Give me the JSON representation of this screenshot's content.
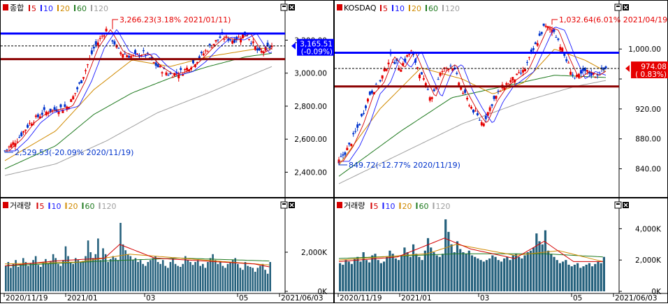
{
  "colors": {
    "up": "#e60000",
    "down": "#0033cc",
    "ma5": "#d40000",
    "ma10": "#1a1aff",
    "ma20": "#d08a00",
    "ma60": "#1f7a1f",
    "ma120": "#a0a0a0",
    "volume": "#24607c",
    "resistance_line": "#0000ff",
    "support_line": "#8b0000"
  },
  "legend_ma": [
    "5",
    "10",
    "20",
    "60",
    "120"
  ],
  "chart_data": [
    {
      "type": "candlestick",
      "id": "kospi-price",
      "title": "종합",
      "x_tick_labels": [
        "2020/11/19",
        "2021/01",
        "03",
        "05",
        "2021/06/03"
      ],
      "y_ticks": [
        2400,
        2600,
        2800,
        3000,
        3200
      ],
      "y_tick_labels": [
        "2,400.00",
        "2,600.00",
        "2,800.00",
        "3,000.00",
        "3,200.00"
      ],
      "ylim": [
        2330,
        3350
      ],
      "high_annotation": "3,266.23(3.18% 2021/01/11)",
      "low_annotation": "2,529.53(-20.09% 2020/11/19)",
      "current_value": "3,165.51",
      "current_change": "(-0.09%)",
      "resistance_level": 3240,
      "support_level": 3085,
      "ref_dashed_level": 3165,
      "low_value": 2529.53,
      "high_value": 3266.23,
      "path": [
        [
          0,
          2529
        ],
        [
          10,
          2600
        ],
        [
          20,
          2700
        ],
        [
          30,
          2760
        ],
        [
          40,
          2780
        ],
        [
          50,
          2800
        ],
        [
          60,
          2950
        ],
        [
          70,
          3150
        ],
        [
          80,
          3266
        ],
        [
          90,
          3130
        ],
        [
          100,
          3100
        ],
        [
          110,
          3120
        ],
        [
          120,
          3040
        ],
        [
          130,
          2990
        ],
        [
          140,
          3010
        ],
        [
          150,
          3070
        ],
        [
          160,
          3150
        ],
        [
          170,
          3220
        ],
        [
          180,
          3200
        ],
        [
          190,
          3240
        ],
        [
          200,
          3120
        ],
        [
          210,
          3165
        ]
      ],
      "ma_paths": {
        "ma20": [
          [
            0,
            2470
          ],
          [
            40,
            2650
          ],
          [
            70,
            2900
          ],
          [
            100,
            3080
          ],
          [
            130,
            3040
          ],
          [
            160,
            3100
          ],
          [
            200,
            3150
          ],
          [
            210,
            3150
          ]
        ],
        "ma60": [
          [
            0,
            2420
          ],
          [
            40,
            2560
          ],
          [
            70,
            2750
          ],
          [
            100,
            2880
          ],
          [
            130,
            2970
          ],
          [
            160,
            3040
          ],
          [
            190,
            3100
          ],
          [
            210,
            3120
          ]
        ],
        "ma120": [
          [
            0,
            2380
          ],
          [
            40,
            2450
          ],
          [
            80,
            2590
          ],
          [
            120,
            2760
          ],
          [
            160,
            2880
          ],
          [
            210,
            3040
          ]
        ]
      }
    },
    {
      "type": "candlestick",
      "id": "kosdaq-price",
      "title": "KOSDAQ",
      "x_tick_labels": [
        "2020/11/19",
        "2021/01",
        "03",
        "05",
        "2021/06/03"
      ],
      "y_ticks": [
        840,
        880,
        920,
        960,
        1000
      ],
      "y_tick_labels": [
        "840.00",
        "880.00",
        "920.00",
        "",
        "1,000.00"
      ],
      "ylim": [
        820,
        1045
      ],
      "high_annotation": "1,032.64(6.01% 2021/04/19)",
      "low_annotation": "849.72(-12.77% 2020/11/19)",
      "current_value": "974.08",
      "current_change": "( 0.83%)",
      "resistance_level": 995,
      "support_level": 950,
      "ref_dashed_level": 974,
      "low_value": 849.72,
      "high_value": 1032.64,
      "path": [
        [
          0,
          850
        ],
        [
          10,
          870
        ],
        [
          20,
          900
        ],
        [
          30,
          940
        ],
        [
          40,
          955
        ],
        [
          50,
          990
        ],
        [
          60,
          975
        ],
        [
          70,
          998
        ],
        [
          80,
          965
        ],
        [
          90,
          935
        ],
        [
          100,
          970
        ],
        [
          110,
          980
        ],
        [
          120,
          945
        ],
        [
          130,
          920
        ],
        [
          140,
          900
        ],
        [
          150,
          930
        ],
        [
          160,
          950
        ],
        [
          170,
          960
        ],
        [
          180,
          970
        ],
        [
          190,
          1000
        ],
        [
          200,
          1030
        ],
        [
          210,
          1025
        ],
        [
          220,
          990
        ],
        [
          230,
          960
        ],
        [
          240,
          970
        ],
        [
          250,
          965
        ],
        [
          260,
          974
        ]
      ],
      "ma_paths": {
        "ma20": [
          [
            0,
            845
          ],
          [
            40,
            920
          ],
          [
            80,
            975
          ],
          [
            120,
            960
          ],
          [
            150,
            940
          ],
          [
            180,
            955
          ],
          [
            210,
            1000
          ],
          [
            240,
            985
          ],
          [
            260,
            970
          ]
        ],
        "ma60": [
          [
            0,
            830
          ],
          [
            60,
            890
          ],
          [
            110,
            935
          ],
          [
            160,
            950
          ],
          [
            210,
            965
          ],
          [
            260,
            962
          ]
        ],
        "ma120": [
          [
            0,
            820
          ],
          [
            60,
            860
          ],
          [
            120,
            900
          ],
          [
            180,
            930
          ],
          [
            230,
            950
          ],
          [
            260,
            958
          ]
        ]
      }
    },
    {
      "type": "bar",
      "id": "kospi-volume",
      "title": "거래량",
      "y_ticks": [
        0,
        2000
      ],
      "y_tick_labels": [
        "0K",
        "2,000K"
      ],
      "ylim": [
        0,
        4000
      ],
      "values_thousands": [
        1300,
        1500,
        1200,
        1400,
        1600,
        1250,
        1350,
        1700,
        1500,
        1300,
        1450,
        1600,
        1800,
        1350,
        1250,
        1500,
        1650,
        1400,
        1550,
        1900,
        1700,
        1400,
        1300,
        1600,
        2300,
        1800,
        1500,
        1400,
        1700,
        1600,
        1500,
        1550,
        1800,
        2600,
        2000,
        1700,
        1900,
        2700,
        1600,
        2200,
        1900,
        1500,
        1650,
        1800,
        1700,
        1600,
        3500,
        2400,
        2100,
        1900,
        1800,
        1600,
        1700,
        1500,
        1600,
        1400,
        1300,
        1500,
        1600,
        1700,
        1800,
        1500,
        1400,
        1600,
        1300,
        1200,
        1500,
        1700,
        1400,
        1300,
        1250,
        1400,
        1800,
        1600,
        1500,
        1350,
        1500,
        1600,
        1300,
        1400,
        1200,
        1500,
        1700,
        1900,
        1600,
        1400,
        1500,
        1300,
        1200,
        1400,
        1500,
        1600,
        1700,
        1400,
        1200,
        1100,
        1500,
        1300,
        1250,
        1200,
        1000,
        1200,
        1300,
        1400,
        1100,
        900,
        1500
      ],
      "ma_paths": {
        "ma5": [
          [
            0,
            1300
          ],
          [
            20,
            1550
          ],
          [
            40,
            1700
          ],
          [
            46,
            2400
          ],
          [
            60,
            1700
          ],
          [
            80,
            1550
          ],
          [
            100,
            1400
          ],
          [
            106,
            1250
          ]
        ],
        "ma20": [
          [
            0,
            1400
          ],
          [
            30,
            1500
          ],
          [
            50,
            1900
          ],
          [
            70,
            1700
          ],
          [
            90,
            1500
          ],
          [
            106,
            1350
          ]
        ],
        "ma60": [
          [
            0,
            1300
          ],
          [
            40,
            1550
          ],
          [
            70,
            1700
          ],
          [
            106,
            1550
          ]
        ]
      }
    },
    {
      "type": "bar",
      "id": "kosdaq-volume",
      "title": "거래량",
      "y_ticks": [
        0,
        2000,
        4000
      ],
      "y_tick_labels": [
        "0K",
        "2,000K",
        "4,000K"
      ],
      "ylim": [
        0,
        5000
      ],
      "values_thousands": [
        1800,
        1700,
        2000,
        1900,
        1750,
        2100,
        2200,
        1900,
        2500,
        2000,
        1850,
        2300,
        2400,
        2000,
        1800,
        1900,
        2200,
        2600,
        2400,
        2100,
        2000,
        2300,
        2800,
        2500,
        2200,
        3000,
        2400,
        2200,
        2000,
        2600,
        3400,
        2800,
        2500,
        2300,
        2200,
        2400,
        4600,
        3800,
        3000,
        2500,
        3200,
        2700,
        2500,
        2400,
        2600,
        2300,
        2200,
        2100,
        2000,
        1900,
        2000,
        2100,
        2300,
        2200,
        2000,
        1900,
        2100,
        2200,
        2000,
        2300,
        2400,
        2200,
        2100,
        2300,
        2500,
        2600,
        2800,
        3700,
        3200,
        3000,
        3900,
        2600,
        2400,
        2200,
        2000,
        1800,
        1900,
        2000,
        1700,
        1600,
        1700,
        1800,
        1500,
        1600,
        1700,
        1800,
        1600,
        1750,
        1900,
        1800,
        2200
      ],
      "ma_paths": {
        "ma5": [
          [
            0,
            1900
          ],
          [
            20,
            2200
          ],
          [
            36,
            3400
          ],
          [
            45,
            2700
          ],
          [
            60,
            2100
          ],
          [
            70,
            3200
          ],
          [
            80,
            1900
          ],
          [
            90,
            1900
          ]
        ],
        "ma20": [
          [
            0,
            2000
          ],
          [
            30,
            2400
          ],
          [
            40,
            3000
          ],
          [
            60,
            2300
          ],
          [
            75,
            2600
          ],
          [
            90,
            1900
          ]
        ],
        "ma60": [
          [
            0,
            2100
          ],
          [
            40,
            2400
          ],
          [
            70,
            2400
          ],
          [
            90,
            2200
          ]
        ]
      }
    }
  ]
}
